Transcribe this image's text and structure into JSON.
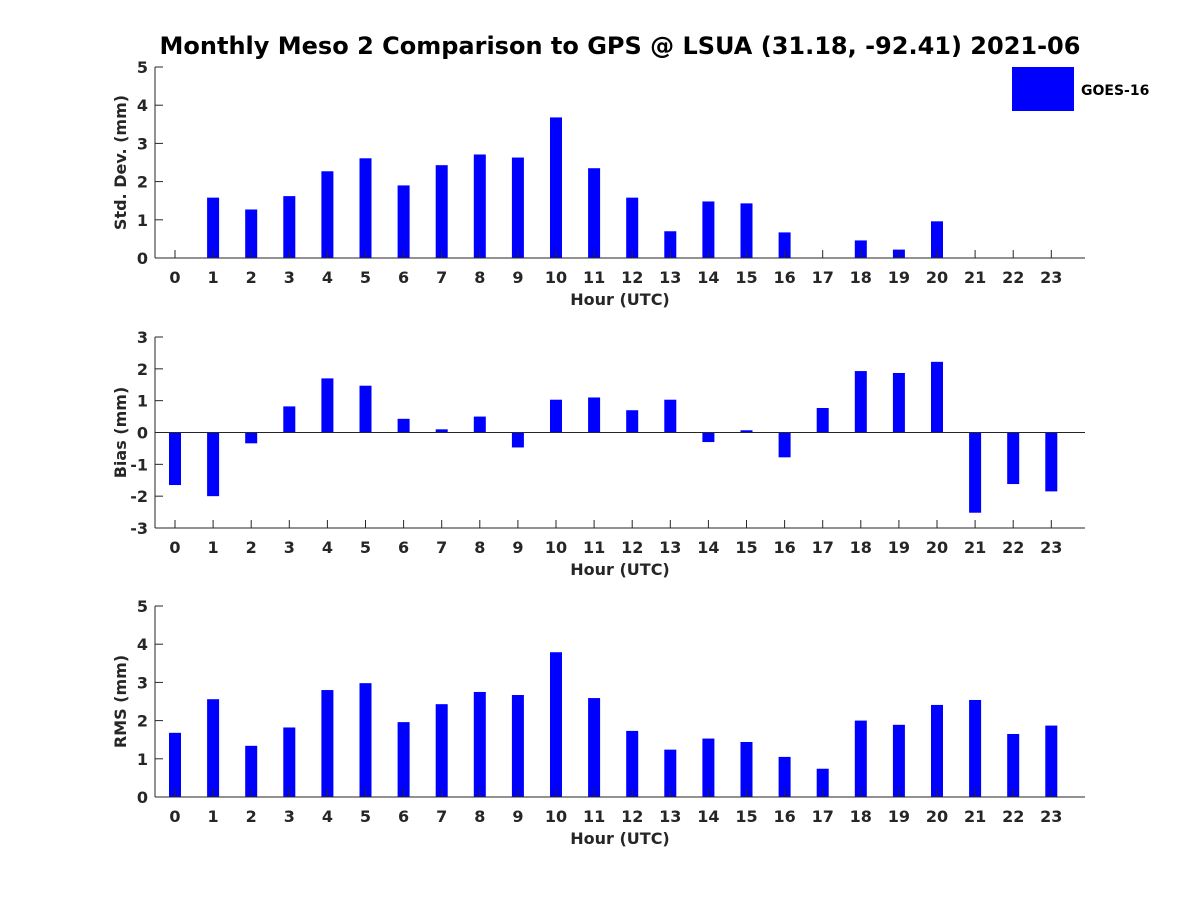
{
  "title": "Monthly Meso 2 Comparison to GPS @ LSUA (31.18, -92.41) 2021-06",
  "colors": {
    "bar": "#0000ff",
    "axis": "#262626"
  },
  "legend": {
    "label": "GOES-16",
    "placement": "top-right"
  },
  "chart_data": [
    {
      "type": "bar",
      "ylabel": "Std. Dev. (mm)",
      "xlabel": "Hour (UTC)",
      "ylim": [
        0,
        5
      ],
      "yticks": [
        0,
        1,
        2,
        3,
        4,
        5
      ],
      "grid": false,
      "categories": [
        "0",
        "1",
        "2",
        "3",
        "4",
        "5",
        "6",
        "7",
        "8",
        "9",
        "10",
        "11",
        "12",
        "13",
        "14",
        "15",
        "16",
        "17",
        "18",
        "19",
        "20",
        "21",
        "22",
        "23"
      ],
      "series": [
        {
          "name": "GOES-16",
          "values": [
            0,
            1.58,
            1.27,
            1.62,
            2.27,
            2.61,
            1.9,
            2.43,
            2.71,
            2.63,
            3.68,
            2.35,
            1.58,
            0.7,
            1.48,
            1.43,
            0.67,
            0,
            0.46,
            0.22,
            0.96,
            0,
            0,
            0
          ]
        }
      ]
    },
    {
      "type": "bar",
      "ylabel": "Bias (mm)",
      "xlabel": "Hour (UTC)",
      "ylim": [
        -3,
        3
      ],
      "yticks": [
        -3,
        -2,
        -1,
        0,
        1,
        2,
        3
      ],
      "grid": false,
      "categories": [
        "0",
        "1",
        "2",
        "3",
        "4",
        "5",
        "6",
        "7",
        "8",
        "9",
        "10",
        "11",
        "12",
        "13",
        "14",
        "15",
        "16",
        "17",
        "18",
        "19",
        "20",
        "21",
        "22",
        "23"
      ],
      "series": [
        {
          "name": "GOES-16",
          "values": [
            -1.65,
            -2.0,
            -0.34,
            0.82,
            1.7,
            1.47,
            0.43,
            0.1,
            0.5,
            -0.47,
            1.03,
            1.1,
            0.7,
            1.03,
            -0.3,
            0.07,
            -0.78,
            0.77,
            1.93,
            1.87,
            2.22,
            -2.52,
            -1.62,
            -1.85
          ]
        }
      ]
    },
    {
      "type": "bar",
      "ylabel": "RMS (mm)",
      "xlabel": "Hour (UTC)",
      "ylim": [
        0,
        5
      ],
      "yticks": [
        0,
        1,
        2,
        3,
        4,
        5
      ],
      "grid": false,
      "categories": [
        "0",
        "1",
        "2",
        "3",
        "4",
        "5",
        "6",
        "7",
        "8",
        "9",
        "10",
        "11",
        "12",
        "13",
        "14",
        "15",
        "16",
        "17",
        "18",
        "19",
        "20",
        "21",
        "22",
        "23"
      ],
      "series": [
        {
          "name": "GOES-16",
          "values": [
            1.68,
            2.56,
            1.34,
            1.82,
            2.8,
            2.98,
            1.96,
            2.43,
            2.75,
            2.67,
            3.79,
            2.59,
            1.73,
            1.24,
            1.53,
            1.44,
            1.05,
            0.74,
            2.0,
            1.89,
            2.41,
            2.54,
            1.65,
            1.87
          ]
        }
      ]
    }
  ]
}
